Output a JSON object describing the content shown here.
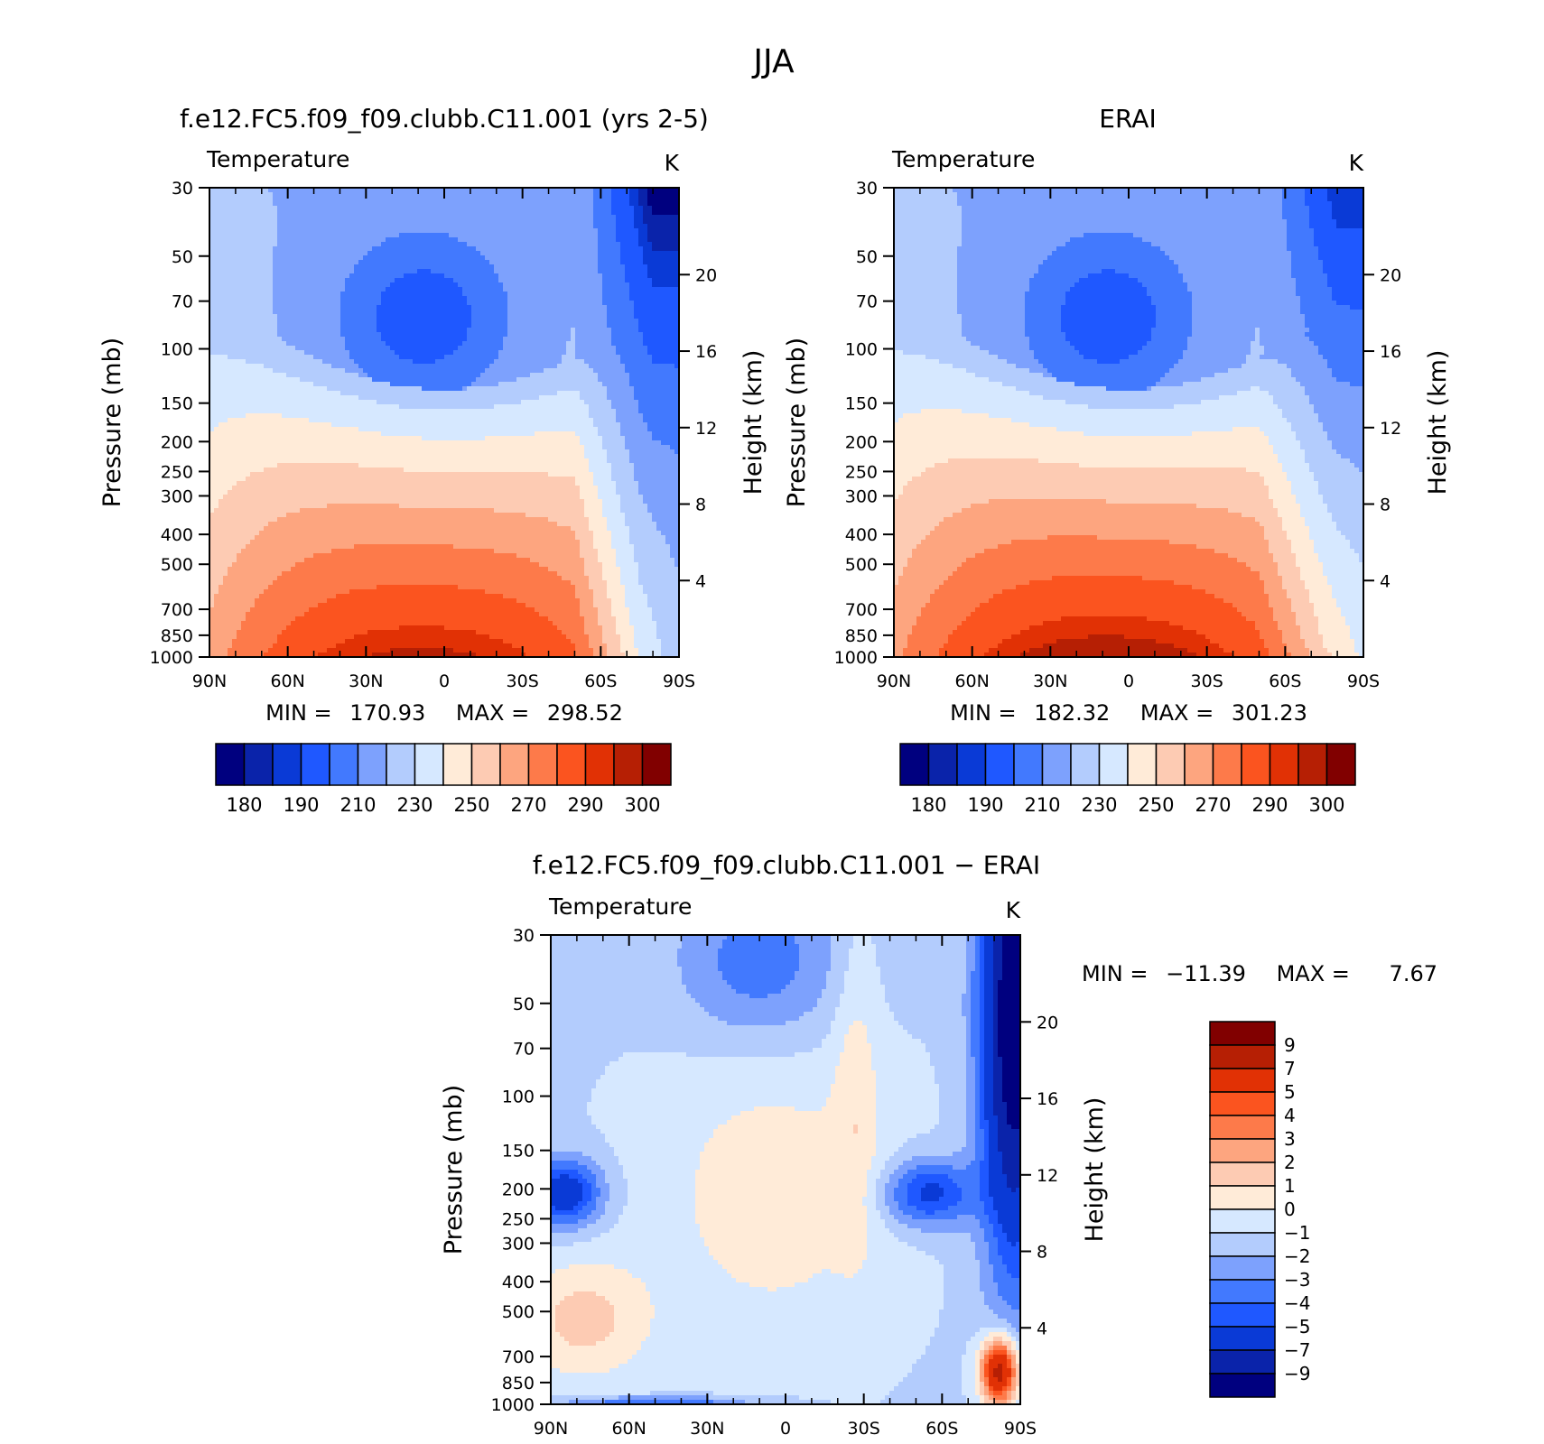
{
  "figure": {
    "title": "JJA"
  },
  "colors": {
    "abs": [
      "#00007f",
      "#0a23aa",
      "#0a3ad6",
      "#1f58ff",
      "#4279fe",
      "#7da1fd",
      "#b3ccfd",
      "#d6e8ff",
      "#ffebd8",
      "#fdcbb3",
      "#fda57f",
      "#fd7a4a",
      "#fb541f",
      "#e13105",
      "#b61f04",
      "#810000"
    ],
    "diff": [
      "#810000",
      "#b61f04",
      "#e13105",
      "#fb541f",
      "#fd7a4a",
      "#fda57f",
      "#fdcbb3",
      "#ffebd8",
      "#d6e8ff",
      "#b3ccfd",
      "#7da1fd",
      "#4279fe",
      "#1f58ff",
      "#0a3ad6",
      "#0a23aa",
      "#00007f"
    ]
  },
  "chart_data": [
    {
      "type": "heatmap",
      "title": "f.e12.FC5.f09_f09.clubb.C11.001 (yrs 2-5)",
      "left_label": "Temperature",
      "right_label": "K",
      "ylabel": "Pressure (mb)",
      "y2label": "Height (km)",
      "x_ticks": [
        "90N",
        "60N",
        "30N",
        "0",
        "30S",
        "60S",
        "90S"
      ],
      "y_ticks": [
        "30",
        "50",
        "70",
        "100",
        "150",
        "200",
        "250",
        "300",
        "400",
        "500",
        "700",
        "850",
        "1000"
      ],
      "y2_ticks": [
        "20",
        "16",
        "12",
        "8",
        "4"
      ],
      "min_label": "MIN =",
      "min_value": "170.93",
      "max_label": "MAX =",
      "max_value": "298.52",
      "colorbar_labels": [
        "180",
        "190",
        "210",
        "230",
        "250",
        "270",
        "290",
        "300"
      ],
      "field": {
        "kind": "abs",
        "tropo_temp": 193,
        "pole_temp": 176,
        "surf_temp": 297,
        "sh_surf": 232
      }
    },
    {
      "type": "heatmap",
      "title": "ERAI",
      "left_label": "Temperature",
      "right_label": "K",
      "ylabel": "Pressure (mb)",
      "y2label": "Height (km)",
      "x_ticks": [
        "90N",
        "60N",
        "30N",
        "0",
        "30S",
        "60S",
        "90S"
      ],
      "y_ticks": [
        "30",
        "50",
        "70",
        "100",
        "150",
        "200",
        "250",
        "300",
        "400",
        "500",
        "700",
        "850",
        "1000"
      ],
      "y2_ticks": [
        "20",
        "16",
        "12",
        "8",
        "4"
      ],
      "min_label": "MIN =",
      "min_value": "182.32",
      "max_label": "MAX =",
      "max_value": "301.23",
      "colorbar_labels": [
        "180",
        "190",
        "210",
        "230",
        "250",
        "270",
        "290",
        "300"
      ],
      "field": {
        "kind": "abs",
        "tropo_temp": 195,
        "pole_temp": 185,
        "surf_temp": 300,
        "sh_surf": 246
      }
    },
    {
      "type": "heatmap",
      "title": "f.e12.FC5.f09_f09.clubb.C11.001 − ERAI",
      "left_label": "Temperature",
      "right_label": "K",
      "ylabel": "Pressure (mb)",
      "y2label": "Height (km)",
      "x_ticks": [
        "90N",
        "60N",
        "30N",
        "0",
        "30S",
        "60S",
        "90S"
      ],
      "y_ticks": [
        "30",
        "50",
        "70",
        "100",
        "150",
        "200",
        "250",
        "300",
        "400",
        "500",
        "700",
        "850",
        "1000"
      ],
      "y2_ticks": [
        "20",
        "16",
        "12",
        "8",
        "4"
      ],
      "min_label": "MIN =",
      "min_value": "−11.39",
      "max_label": "MAX =",
      "max_value": "7.67",
      "colorbar_labels": [
        "9",
        "7",
        "5",
        "4",
        "3",
        "2",
        "1",
        "0",
        "−1",
        "−2",
        "−3",
        "−4",
        "−5",
        "−7",
        "−9"
      ],
      "field": {
        "kind": "diff"
      }
    }
  ]
}
